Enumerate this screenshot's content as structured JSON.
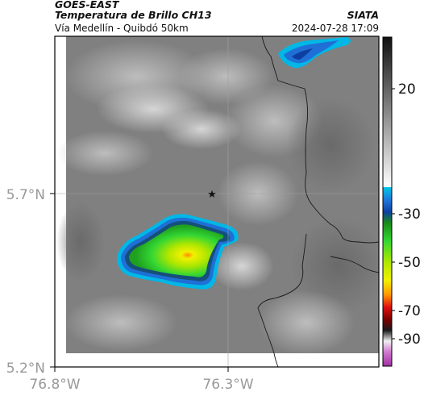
{
  "header": {
    "satellite": "GOES-EAST",
    "product": "Temperatura de Brillo CH13",
    "region": "Vía Medellín - Quibdó 50km",
    "agency": "SIATA",
    "datetime": "2024-07-28 17:09"
  },
  "axes": {
    "lon_ticks": [
      "76.8°W",
      "76.3°W"
    ],
    "lat_ticks": [
      "5.7°N",
      "5.2°N"
    ]
  },
  "colorbar": {
    "ticks": [
      "20",
      "-30",
      "-50",
      "-70",
      "-90"
    ]
  },
  "colors": {
    "cold_cloud_green": "#33d633",
    "cold_cloud_yellow": "#f0f000",
    "cold_cloud_orange": "#ff8c00",
    "edge_blue": "#1f6fd6",
    "edge_cyan": "#00b7e6",
    "background_gray": "#7f7f7f"
  },
  "markers": [
    {
      "name": "site-star",
      "symbol": "★"
    }
  ]
}
